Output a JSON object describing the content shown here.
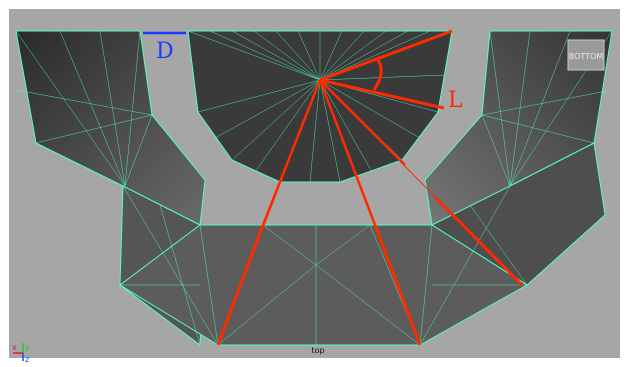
{
  "viewport": {
    "camera_label": "top",
    "view_cube_label": "BOTTOM",
    "axis": {
      "x_label": "x",
      "y_label": "y",
      "z_label": "z"
    }
  },
  "annotations": {
    "label_d": "D",
    "label_l": "L"
  },
  "colors": {
    "background": "#a6a6a6",
    "mesh_face_dark": "#3c3c3c",
    "mesh_face_mid": "#5a5a5a",
    "mesh_face_light": "#7a7a7a",
    "wireframe": "#50ffc0",
    "annotation_red": "#ff2a00",
    "annotation_blue": "#1a3cff"
  }
}
